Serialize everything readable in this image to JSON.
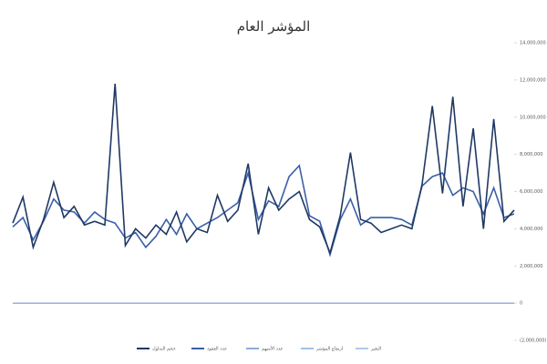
{
  "chart_data": {
    "type": "line",
    "title": "المؤشر العام",
    "categories": [
      null,
      null,
      null,
      null,
      null,
      null,
      null,
      null,
      null,
      null,
      null,
      null,
      null,
      null,
      null,
      null,
      null,
      null,
      null,
      null,
      null,
      null,
      null,
      null,
      null,
      null,
      null,
      null,
      null,
      null,
      null,
      null,
      null,
      null,
      null,
      null,
      null,
      null,
      null,
      null,
      null,
      null,
      null,
      null,
      null,
      null,
      null,
      null,
      null,
      null
    ],
    "series": [
      {
        "name": "حجم التداول",
        "color": "#203864",
        "values": [
          4300000,
          5700000,
          3000000,
          4500000,
          6500000,
          4600000,
          5200000,
          4200000,
          4400000,
          4200000,
          11800000,
          3100000,
          4000000,
          3500000,
          4200000,
          3700000,
          4900000,
          3300000,
          4000000,
          3800000,
          5800000,
          4400000,
          5000000,
          7500000,
          3700000,
          6200000,
          5000000,
          5600000,
          6000000,
          4500000,
          4100000,
          2700000,
          4700000,
          8100000,
          4500000,
          4300000,
          3800000,
          4000000,
          4200000,
          4000000,
          6400000,
          10600000,
          5900000,
          11100000,
          5200000,
          9400000,
          4000000,
          9900000,
          4400000,
          5000000
        ]
      },
      {
        "name": "عدد العقود",
        "color": "#3a5fa8",
        "values": [
          4100000,
          4600000,
          3400000,
          4400000,
          5600000,
          5000000,
          4900000,
          4300000,
          4900000,
          4500000,
          4300000,
          3500000,
          3800000,
          3000000,
          3600000,
          4500000,
          3700000,
          4800000,
          4000000,
          4300000,
          4600000,
          5000000,
          5400000,
          7000000,
          4500000,
          5500000,
          5200000,
          6800000,
          7400000,
          4700000,
          4400000,
          2600000,
          4500000,
          5600000,
          4200000,
          4600000,
          4600000,
          4600000,
          4500000,
          4200000,
          6300000,
          6800000,
          7000000,
          5800000,
          6200000,
          6000000,
          4800000,
          6200000,
          4600000,
          4800000
        ]
      },
      {
        "name": "عدد الأسهم",
        "color": "#8faadc",
        "values": [
          0,
          0,
          0,
          0,
          0,
          0,
          0,
          0,
          0,
          0,
          0,
          0,
          0,
          0,
          0,
          0,
          0,
          0,
          0,
          0,
          0,
          0,
          0,
          0,
          0,
          0,
          0,
          0,
          0,
          0,
          0,
          0,
          0,
          0,
          0,
          0,
          0,
          0,
          0,
          0,
          0,
          0,
          0,
          0,
          0,
          0,
          0,
          0,
          0,
          0
        ]
      },
      {
        "name": "ارتفاع المؤشر",
        "color": "#9dc3e6",
        "values": [
          0,
          0,
          0,
          0,
          0,
          0,
          0,
          0,
          0,
          0,
          0,
          0,
          0,
          0,
          0,
          0,
          0,
          0,
          0,
          0,
          0,
          0,
          0,
          0,
          0,
          0,
          0,
          0,
          0,
          0,
          0,
          0,
          0,
          0,
          0,
          0,
          0,
          0,
          0,
          0,
          0,
          0,
          0,
          0,
          0,
          0,
          0,
          0,
          0,
          0
        ]
      },
      {
        "name": "التغير",
        "color": "#b4c7e7",
        "values": [
          0,
          0,
          0,
          0,
          0,
          0,
          0,
          0,
          0,
          0,
          0,
          0,
          0,
          0,
          0,
          0,
          0,
          0,
          0,
          0,
          0,
          0,
          0,
          0,
          0,
          0,
          0,
          0,
          0,
          0,
          0,
          0,
          0,
          0,
          0,
          0,
          0,
          0,
          0,
          0,
          0,
          0,
          0,
          0,
          0,
          0,
          0,
          0,
          0,
          0
        ]
      }
    ],
    "ylim": [
      -2000000,
      14000000
    ],
    "yticks": [
      {
        "value": -2000000,
        "label": "(2,000,000)"
      },
      0,
      {
        "value": 2000000,
        "label": "2,000,000"
      },
      {
        "value": 4000000,
        "label": "4,000,000"
      },
      {
        "value": 6000000,
        "label": "6,000,000"
      },
      {
        "value": 8000000,
        "label": "8,000,000"
      },
      {
        "value": 10000000,
        "label": "10,000,000"
      },
      {
        "value": 12000000,
        "label": "12,000,000"
      },
      {
        "value": 14000000,
        "label": "14,000,000"
      }
    ],
    "grid": false,
    "legend": "bottom"
  }
}
